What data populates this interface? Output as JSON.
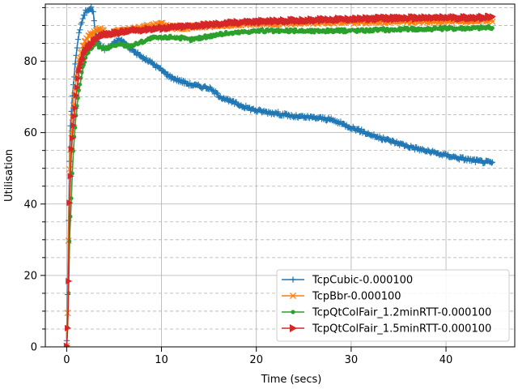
{
  "chart_data": {
    "type": "line",
    "xlabel": "Time (secs)",
    "ylabel": "Utilisation",
    "xlim": [
      -2.25,
      47.25
    ],
    "ylim": [
      0,
      96
    ],
    "x_ticks": [
      0,
      10,
      20,
      30,
      40
    ],
    "y_ticks": [
      0,
      20,
      40,
      60,
      80
    ],
    "y_minor_ticks": [
      5,
      10,
      15,
      25,
      30,
      35,
      45,
      50,
      55,
      65,
      70,
      75,
      85,
      90,
      95
    ],
    "grid": {
      "major": "solid",
      "minor_y": "dashed"
    },
    "legend_position": "lower right",
    "series": [
      {
        "name": "TcpCubic-0.000100",
        "color": "#1f77b4",
        "marker": "plus",
        "x": [
          0.0,
          0.1,
          0.2,
          0.3,
          0.4,
          0.6,
          0.8,
          1.0,
          1.3,
          1.6,
          2.0,
          2.5,
          2.8,
          3.0,
          3.3,
          3.7,
          4.0,
          4.5,
          5.0,
          5.5,
          6.0,
          6.5,
          7.0,
          8.0,
          9.0,
          10.0,
          11.0,
          12.0,
          13.0,
          14.0,
          15.0,
          16.0,
          17.0,
          18.0,
          19.0,
          20.0,
          21.0,
          22.0,
          23.0,
          24.0,
          25.0,
          26.0,
          27.0,
          28.0,
          29.0,
          30.0,
          31.0,
          32.0,
          33.0,
          34.0,
          35.0,
          36.0,
          37.0,
          38.0,
          39.0,
          40.0,
          41.0,
          42.0,
          43.0,
          44.0,
          45.0
        ],
        "y": [
          2,
          15,
          35,
          52,
          62,
          70,
          76,
          82,
          88,
          91,
          94,
          95,
          94,
          88,
          85,
          84,
          83.5,
          84,
          85,
          86,
          85.5,
          84,
          83,
          81,
          79.5,
          77.5,
          75.5,
          74.5,
          73.5,
          73,
          72.5,
          70.5,
          69,
          68,
          67,
          66.2,
          65.8,
          65.5,
          65,
          64.5,
          64.3,
          64.2,
          64,
          63.5,
          62.5,
          61.5,
          60.5,
          59.5,
          58.5,
          57.8,
          57,
          56.2,
          55.5,
          54.8,
          54.2,
          53.7,
          53.1,
          52.6,
          52.2,
          51.8,
          51.5
        ]
      },
      {
        "name": "TcpBbr-0.000100",
        "color": "#ff7f0e",
        "marker": "x",
        "x": [
          0.0,
          0.1,
          0.2,
          0.3,
          0.5,
          0.7,
          1.0,
          1.3,
          1.7,
          2.0,
          2.5,
          3.0,
          3.5,
          4.0,
          4.5,
          5.0,
          5.5,
          6.0,
          7.0,
          8.0,
          9.0,
          10.0,
          11.0,
          12.0,
          13.0,
          14.0,
          15.0,
          16.0,
          17.0,
          18.0,
          19.0,
          20.0,
          21.0,
          22.0,
          23.0,
          24.0,
          25.0,
          26.0,
          27.0,
          28.0,
          29.0,
          30.0,
          31.0,
          32.0,
          33.0,
          34.0,
          35.0,
          36.0,
          37.0,
          38.0,
          39.0,
          40.0,
          41.0,
          42.0,
          43.0,
          44.0,
          45.0
        ],
        "y": [
          0,
          10,
          30,
          50,
          60,
          68,
          75,
          80,
          84,
          86,
          87.5,
          88.5,
          89,
          88,
          87.5,
          88,
          88.5,
          88.5,
          88.8,
          89.5,
          90,
          90.3,
          89.5,
          89.5,
          89.6,
          89.8,
          90,
          90.2,
          90.3,
          90.4,
          90.5,
          90.5,
          90.6,
          90.6,
          90.7,
          90.8,
          90.8,
          90.9,
          91,
          91,
          91,
          91,
          91,
          91.1,
          91.1,
          91.2,
          91.2,
          91.2,
          91.3,
          91.3,
          91.3,
          91.4,
          91.4,
          91.4,
          91.5,
          91.5,
          91.5
        ]
      },
      {
        "name": "TcpQtColFair_1.2minRTT-0.000100",
        "color": "#2ca02c",
        "marker": "point",
        "x": [
          0.0,
          0.1,
          0.2,
          0.3,
          0.5,
          0.7,
          1.0,
          1.3,
          1.7,
          2.0,
          2.5,
          3.0,
          3.5,
          4.0,
          4.5,
          5.0,
          5.5,
          6.0,
          6.5,
          7.0,
          8.0,
          9.0,
          10.0,
          11.0,
          12.0,
          13.0,
          14.0,
          15.0,
          16.0,
          17.0,
          18.0,
          19.0,
          20.0,
          21.0,
          22.0,
          23.0,
          24.0,
          25.0,
          26.0,
          27.0,
          28.0,
          29.0,
          30.0,
          31.0,
          32.0,
          33.0,
          34.0,
          35.0,
          36.0,
          37.0,
          38.0,
          39.0,
          40.0,
          41.0,
          42.0,
          43.0,
          44.0,
          45.0
        ],
        "y": [
          0,
          5,
          15,
          30,
          42,
          55,
          65,
          72,
          78,
          81,
          83.5,
          85,
          84,
          83.5,
          83.8,
          84.5,
          84.6,
          84.5,
          84.3,
          84.5,
          85.5,
          86.5,
          86.5,
          86.8,
          86.5,
          86,
          86.5,
          87,
          87.5,
          87.8,
          88,
          88.3,
          88.5,
          88.5,
          88.4,
          88.4,
          88.5,
          88.5,
          88.4,
          88.5,
          88.5,
          88.5,
          88.6,
          88.6,
          88.7,
          88.8,
          88.8,
          88.9,
          89,
          89,
          89,
          89.1,
          89.2,
          89.2,
          89.3,
          89.3,
          89.4,
          89.4
        ]
      },
      {
        "name": "TcpQtColFair_1.5minRTT-0.000100",
        "color": "#d62728",
        "marker": "triangle-right",
        "x": [
          0.0,
          0.05,
          0.1,
          0.15,
          0.2,
          0.25,
          0.3,
          0.4,
          0.5,
          0.7,
          1.0,
          1.3,
          1.7,
          2.0,
          2.5,
          3.0,
          3.5,
          4.0,
          4.5,
          5.0,
          5.5,
          6.0,
          6.5,
          7.0,
          8.0,
          9.0,
          10.0,
          11.0,
          12.0,
          13.0,
          14.0,
          15.0,
          16.0,
          17.0,
          18.0,
          19.0,
          20.0,
          21.0,
          22.0,
          23.0,
          24.0,
          25.0,
          26.0,
          27.0,
          28.0,
          29.0,
          30.0,
          31.0,
          32.0,
          33.0,
          34.0,
          35.0,
          36.0,
          37.0,
          38.0,
          39.0,
          40.0,
          41.0,
          42.0,
          43.0,
          44.0,
          45.0
        ],
        "y": [
          0,
          2,
          5,
          10,
          18,
          30,
          40,
          48,
          55,
          62,
          70,
          77,
          81,
          83,
          84.5,
          86,
          87,
          87.5,
          87.5,
          87.8,
          88,
          88.2,
          88.3,
          88.5,
          88.8,
          89,
          89.2,
          89.4,
          89.6,
          89.8,
          90,
          90.2,
          90.4,
          90.6,
          90.8,
          91,
          91,
          91.1,
          91.2,
          91.3,
          91.4,
          91.5,
          91.5,
          91.6,
          91.7,
          91.7,
          91.8,
          91.8,
          91.9,
          92,
          92,
          92,
          92.1,
          92.1,
          92.1,
          92.1,
          92.2,
          92.2,
          92.2,
          92.2,
          92.3,
          92.3
        ]
      }
    ]
  }
}
